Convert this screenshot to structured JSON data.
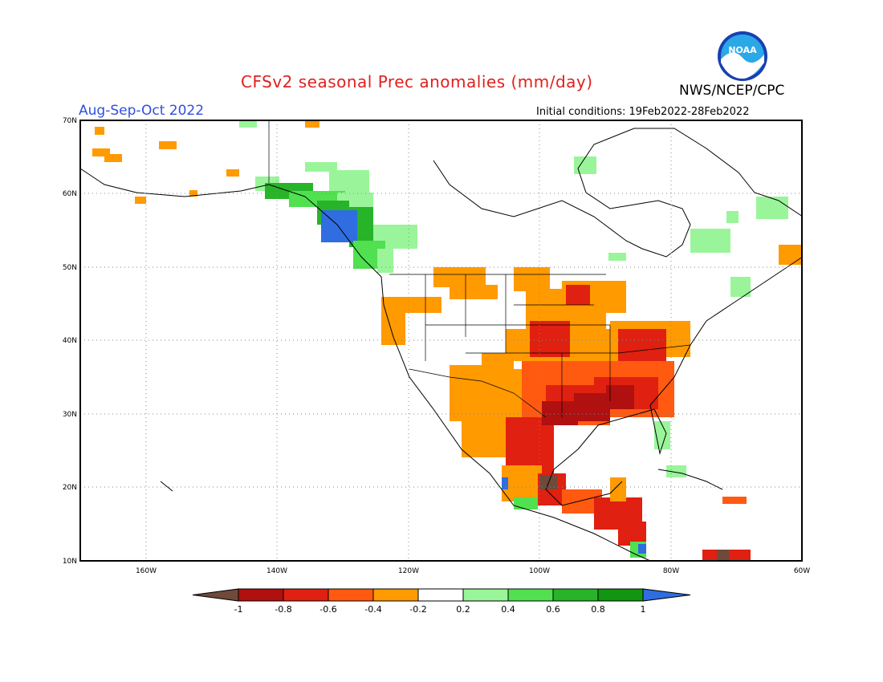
{
  "title": "CFSv2 seasonal Prec anomalies (mm/day)",
  "period": "Aug-Sep-Oct 2022",
  "agency": "NWS/NCEP/CPC",
  "initial_conditions": "Initial conditions: 19Feb2022-28Feb2022",
  "logo_text": "NOAA",
  "map": {
    "projection": "lat-lon",
    "lon_range": [
      "170W",
      "60W"
    ],
    "lat_range": [
      "10N",
      "70N"
    ],
    "lat_labels": [
      "70N",
      "60N",
      "50N",
      "40N",
      "30N",
      "20N",
      "10N"
    ],
    "lon_labels": [
      "160W",
      "140W",
      "120W",
      "100W",
      "80W",
      "60W"
    ],
    "grid": "dotted"
  },
  "colorbar": {
    "labels": [
      "-1",
      "-0.8",
      "-0.6",
      "-0.4",
      "-0.2",
      "0.2",
      "0.4",
      "0.6",
      "0.8",
      "1"
    ],
    "colors": [
      "#6e4a3a",
      "#b01010",
      "#e02010",
      "#ff5a10",
      "#ff9a00",
      "#ffffff",
      "#9af59a",
      "#50e050",
      "#28b428",
      "#109610",
      "#2f6de0"
    ]
  },
  "anomaly_regions": [
    {
      "area": "southern Alaska coast / British Columbia",
      "sign": "wet",
      "level": "0.2 to 1"
    },
    {
      "area": "US Northern Plains to Upper Midwest",
      "sign": "dry",
      "level": "-0.2 to -0.6"
    },
    {
      "area": "US Gulf Coast / Southeast",
      "sign": "dry",
      "level": "-0.4 to -1"
    },
    {
      "area": "Mexico / Central America",
      "sign": "dry",
      "level": "-0.2 to -1"
    },
    {
      "area": "Florida / Caribbean",
      "sign": "wet",
      "level": "0.2 to 0.4"
    },
    {
      "area": "Hudson Bay / Quebec",
      "sign": "wet",
      "level": "0.2 to 0.4"
    }
  ]
}
